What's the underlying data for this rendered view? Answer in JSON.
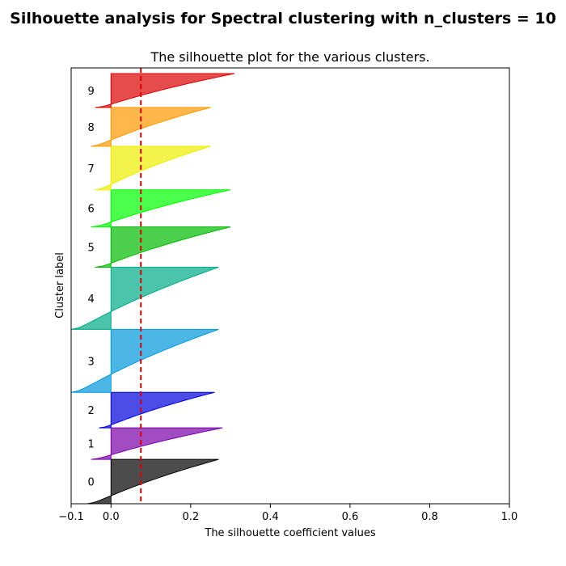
{
  "figure": {
    "suptitle": "Silhouette analysis for Spectral clustering with n_clusters = 10"
  },
  "chart_data": {
    "type": "area",
    "title": "The silhouette plot for the various clusters.",
    "xlabel": "The silhouette coefficient values",
    "ylabel": "Cluster label",
    "xlim": [
      -0.1,
      1.0
    ],
    "xticks": [
      -0.1,
      0.0,
      0.2,
      0.4,
      0.6,
      0.8,
      1.0
    ],
    "xtick_labels": [
      "−0.1",
      "0.0",
      "0.2",
      "0.4",
      "0.6",
      "0.8",
      "1.0"
    ],
    "ylim": [
      0,
      540
    ],
    "yticks": [],
    "grid": false,
    "average_silhouette_score": 0.075,
    "average_line_color": "#dd0000",
    "clusters": [
      {
        "label": "0",
        "size": 55,
        "max": 0.27,
        "min": -0.06,
        "color": "#000000"
      },
      {
        "label": "1",
        "size": 39,
        "max": 0.28,
        "min": -0.05,
        "color": "#7b00a8"
      },
      {
        "label": "2",
        "size": 44,
        "max": 0.26,
        "min": -0.03,
        "color": "#0000dd"
      },
      {
        "label": "3",
        "size": 78,
        "max": 0.27,
        "min": -0.1,
        "color": "#0099dd"
      },
      {
        "label": "4",
        "size": 77,
        "max": 0.27,
        "min": -0.1,
        "color": "#00aa88"
      },
      {
        "label": "5",
        "size": 50,
        "max": 0.3,
        "min": -0.04,
        "color": "#00bb00"
      },
      {
        "label": "6",
        "size": 46,
        "max": 0.3,
        "min": -0.05,
        "color": "#00ff00"
      },
      {
        "label": "7",
        "size": 54,
        "max": 0.25,
        "min": -0.04,
        "color": "#eeee00"
      },
      {
        "label": "8",
        "size": 48,
        "max": 0.25,
        "min": -0.05,
        "color": "#ff9900"
      },
      {
        "label": "9",
        "size": 42,
        "max": 0.31,
        "min": -0.04,
        "color": "#dd0000"
      }
    ]
  }
}
